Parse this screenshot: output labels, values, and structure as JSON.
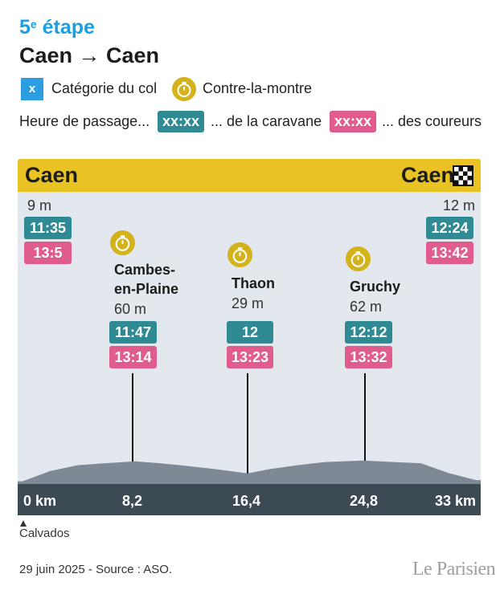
{
  "header": {
    "stage_number": "5",
    "stage_sup": "e",
    "stage_word": "étape",
    "route": "Caen → Caen"
  },
  "legend": {
    "category_box": "x",
    "category_label": "Catégorie du col",
    "clock_label": "Contre-la-montre",
    "passage_label": "Heure de passage...",
    "caravane_sample": "xx:xx",
    "caravane_label": "... de la caravane",
    "coureurs_sample": "xx:xx",
    "coureurs_label": "... des coureurs"
  },
  "banner": {
    "start": "Caen",
    "finish": "Caen"
  },
  "points": [
    {
      "name": "",
      "altitude": "9 m",
      "caravane": "11:35",
      "coureurs": "13:5"
    },
    {
      "name_line1": "Cambes-",
      "name_line2": "en-Plaine",
      "altitude": "60 m",
      "caravane": "11:47",
      "coureurs": "13:14"
    },
    {
      "name_line1": "Thaon",
      "altitude": "29 m",
      "caravane": "12",
      "coureurs": "13:23"
    },
    {
      "name_line1": "Gruchy",
      "altitude": "62 m",
      "caravane": "12:12",
      "coureurs": "13:32"
    },
    {
      "name": "",
      "altitude": "12 m",
      "caravane": "12:24",
      "coureurs": "13:42"
    }
  ],
  "axis": {
    "labels": [
      "0 km",
      "8,2",
      "16,4",
      "24,8",
      "33 km"
    ]
  },
  "department": "Calvados",
  "footer": {
    "source": "29 juin 2025 - Source : ASO.",
    "brand": "Le Parisien"
  },
  "colors": {
    "stage_blue": "#1a9fe0",
    "banner_yellow": "#e9c324",
    "caravane_teal": "#2f8a93",
    "coureurs_pink": "#e05b8e",
    "clock_gold": "#d4b21b",
    "profile_grey": "#7d8a96"
  },
  "chart_data": {
    "type": "area",
    "xlabel": "",
    "ylabel": "",
    "x_unit": "km",
    "xlim": [
      0,
      33
    ],
    "x_ticks": [
      0,
      8.2,
      16.4,
      24.8,
      33
    ],
    "profile": {
      "x": [
        0,
        2,
        4,
        6,
        8.2,
        10,
        12,
        14,
        16.4,
        18,
        20,
        22,
        24.8,
        27,
        29,
        31,
        33
      ],
      "y": [
        9,
        35,
        50,
        55,
        60,
        55,
        48,
        40,
        29,
        40,
        50,
        58,
        62,
        58,
        55,
        30,
        12
      ]
    },
    "points": [
      {
        "km": 0,
        "name": "Caen",
        "altitude_m": 9,
        "caravane": "11:35",
        "coureurs": "13:5"
      },
      {
        "km": 8.2,
        "name": "Cambes-en-Plaine",
        "altitude_m": 60,
        "caravane": "11:47",
        "coureurs": "13:14"
      },
      {
        "km": 16.4,
        "name": "Thaon",
        "altitude_m": 29,
        "caravane": "12",
        "coureurs": "13:23"
      },
      {
        "km": 24.8,
        "name": "Gruchy",
        "altitude_m": 62,
        "caravane": "12:12",
        "coureurs": "13:32"
      },
      {
        "km": 33,
        "name": "Caen",
        "altitude_m": 12,
        "caravane": "12:24",
        "coureurs": "13:42"
      }
    ]
  }
}
